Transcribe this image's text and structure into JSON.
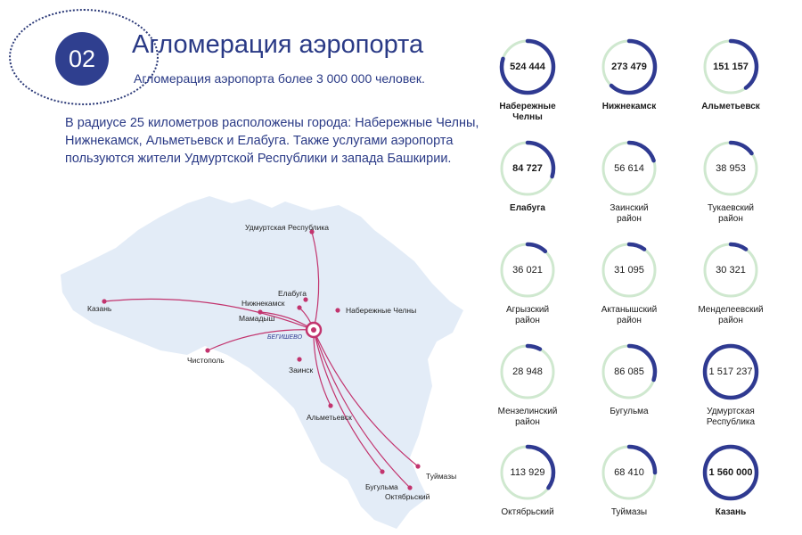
{
  "header": {
    "number": "02",
    "title": "Агломерация аэропорта",
    "subtitle": "Агломерация аэропорта более 3 000 000 человек."
  },
  "description": "В радиусе 25 километров расположены города: Набережные Челны, Нижнекамск, Альметьевск и Елабуга. Также услугами аэропорта пользуются жители Удмуртской Республики и запада Башкирии.",
  "map": {
    "airport_label": "БЕГИШЕВО",
    "cities": [
      "Удмуртская Республика",
      "Елабуга",
      "Нижнекамск",
      "Набережные Челны",
      "Мамадыш",
      "Казань",
      "Чистополь",
      "Заинск",
      "Альметьевск",
      "Туймазы",
      "Бугульма",
      "Октябрьский"
    ],
    "colors": {
      "land": "#e3ecf7",
      "route": "#c2346e",
      "hub": "#c2346e"
    }
  },
  "stats": [
    {
      "value": "524 444",
      "label": "Набережные\nЧелны",
      "bold": true,
      "fraction": 0.8
    },
    {
      "value": "273 479",
      "label": "Нижнекамск",
      "bold": true,
      "fraction": 0.62
    },
    {
      "value": "151 157",
      "label": "Альметьевск",
      "bold": true,
      "fraction": 0.4
    },
    {
      "value": "84 727",
      "label": "Елабуга",
      "bold": true,
      "fraction": 0.3
    },
    {
      "value": "56 614",
      "label": "Заинский\nрайон",
      "bold": false,
      "fraction": 0.2
    },
    {
      "value": "38 953",
      "label": "Тукаевский\nрайон",
      "bold": false,
      "fraction": 0.15
    },
    {
      "value": "36 021",
      "label": "Агрызский\nрайон",
      "bold": false,
      "fraction": 0.12
    },
    {
      "value": "31 095",
      "label": "Актанышский\nрайон",
      "bold": false,
      "fraction": 0.1
    },
    {
      "value": "30 321",
      "label": "Менделеевский\nрайон",
      "bold": false,
      "fraction": 0.1
    },
    {
      "value": "28 948",
      "label": "Мензелинский\nрайон",
      "bold": false,
      "fraction": 0.08
    },
    {
      "value": "86 085",
      "label": "Бугульма",
      "bold": false,
      "fraction": 0.3
    },
    {
      "value": "1 517 237",
      "label": "Удмуртская\nРеспублика",
      "bold": false,
      "fraction": 1.0
    },
    {
      "value": "113 929",
      "label": "Октябрьский",
      "bold": false,
      "fraction": 0.35
    },
    {
      "value": "68 410",
      "label": "Туймазы",
      "bold": false,
      "fraction": 0.25
    },
    {
      "value": "1 560 000",
      "label": "Казань",
      "bold": true,
      "fraction": 1.0
    }
  ],
  "colors": {
    "ring_track": "#cfe8cf",
    "ring_fill": "#2f3a91",
    "accent": "#2a3a86"
  }
}
